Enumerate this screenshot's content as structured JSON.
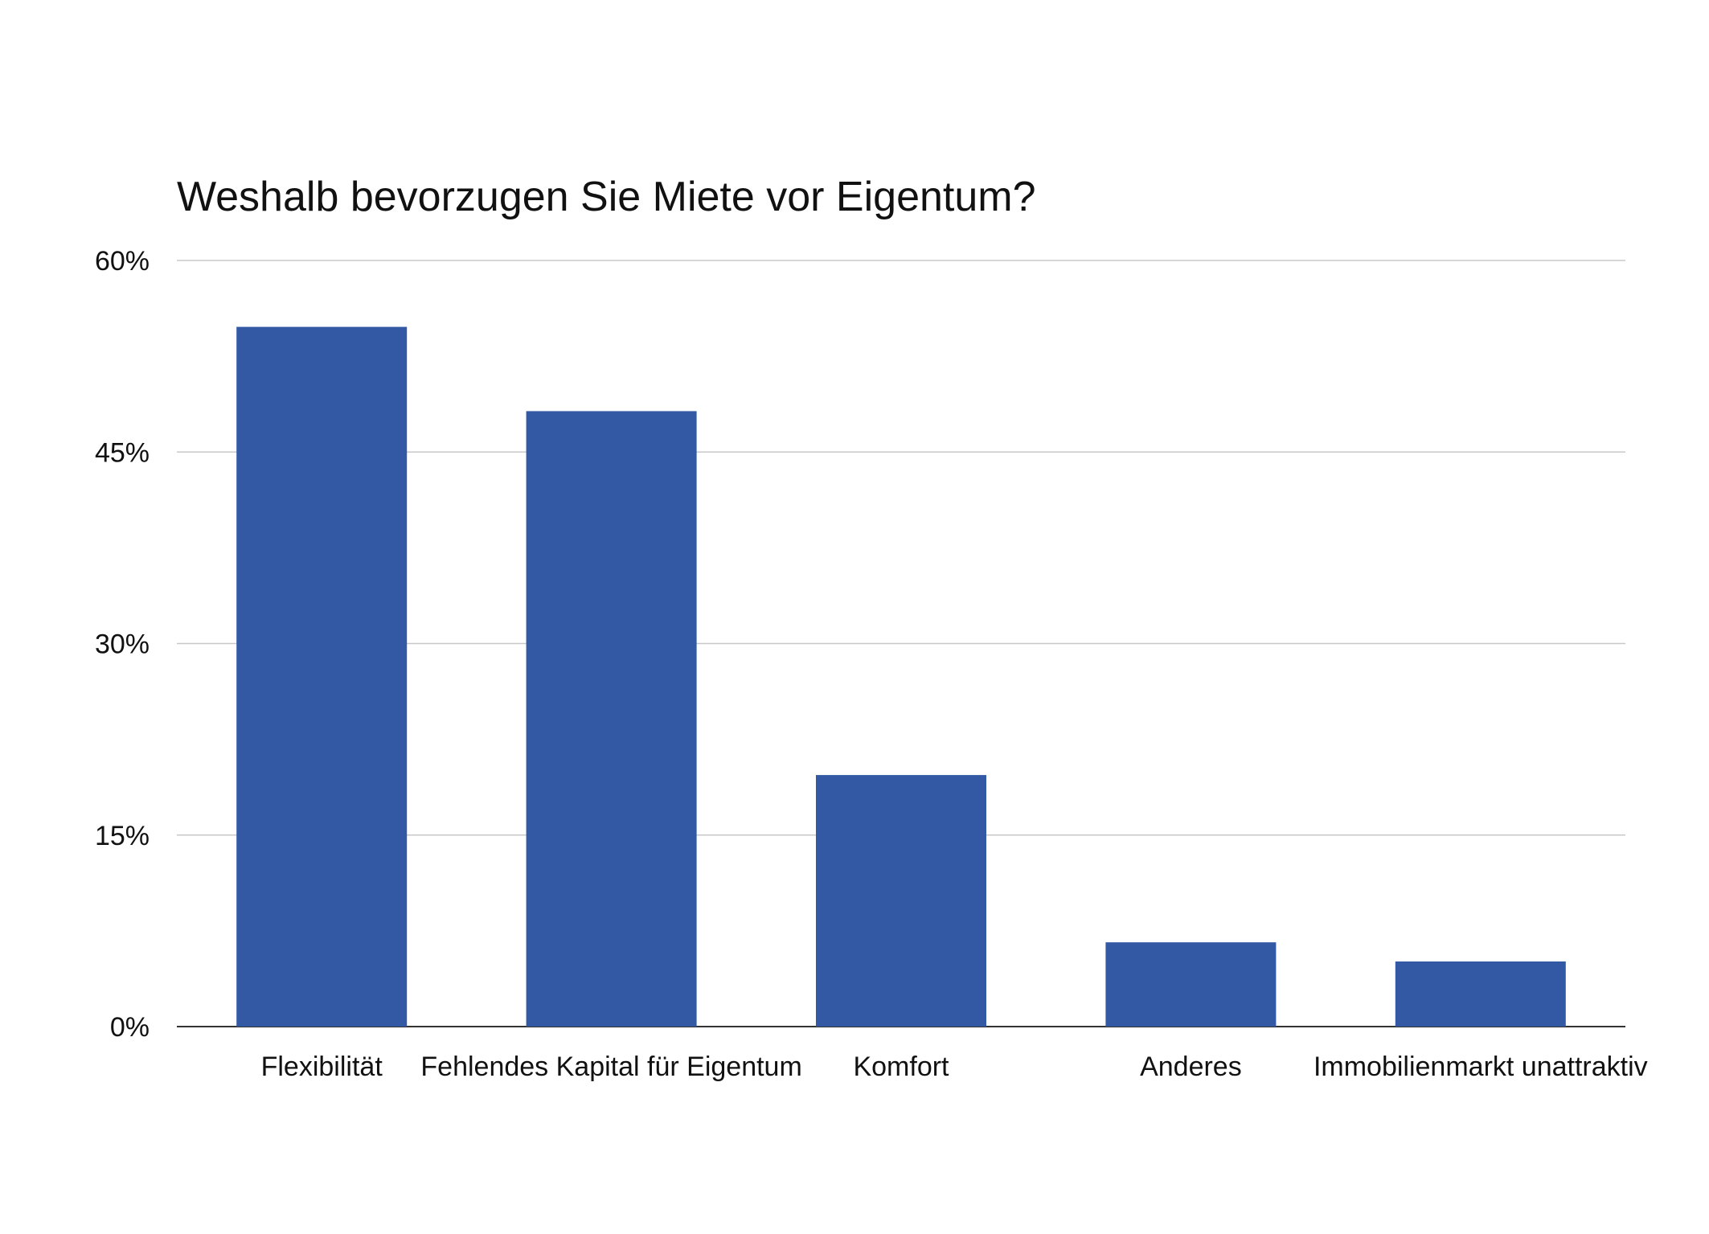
{
  "chart_data": {
    "type": "bar",
    "title": "Weshalb bevorzugen Sie Miete vor Eigentum?",
    "categories": [
      "Flexibilität",
      "Fehlendes Kapital für Eigentum",
      "Komfort",
      "Anderes",
      "Immobilienmarkt unattraktiv"
    ],
    "values": [
      54.8,
      48.2,
      19.7,
      6.6,
      5.1
    ],
    "ylim": [
      0,
      60
    ],
    "yticks": [
      0,
      15,
      30,
      45,
      60
    ],
    "ytick_labels": [
      "0%",
      "15%",
      "30%",
      "45%",
      "60%"
    ],
    "grid": true,
    "legend": "none",
    "bar_color": "#3359a4"
  }
}
